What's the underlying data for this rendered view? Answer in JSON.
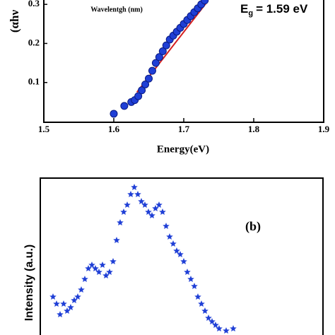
{
  "chart_data": [
    {
      "type": "scatter",
      "marker": "circle",
      "color": "#1f3fd6",
      "y_label": "(αhν",
      "x_label": "Energy(eV)",
      "annotation": "Wavelentgh (nm)",
      "eg_label": {
        "symbol": "E",
        "subscript": "g",
        "value": "= 1.59 eV"
      },
      "x": [
        1.6,
        1.615,
        1.625,
        1.63,
        1.635,
        1.64,
        1.645,
        1.65,
        1.655,
        1.66,
        1.665,
        1.67,
        1.675,
        1.68,
        1.685,
        1.69,
        1.695,
        1.7,
        1.705,
        1.71,
        1.715,
        1.72,
        1.725,
        1.73
      ],
      "values": [
        0.02,
        0.04,
        0.05,
        0.055,
        0.065,
        0.08,
        0.095,
        0.11,
        0.13,
        0.15,
        0.165,
        0.18,
        0.195,
        0.21,
        0.22,
        0.23,
        0.24,
        0.25,
        0.26,
        0.27,
        0.28,
        0.29,
        0.3,
        0.31
      ],
      "fit": {
        "color": "#d42020",
        "x": [
          1.633,
          1.735
        ],
        "values": [
          0.075,
          0.31
        ]
      },
      "xlim": [
        1.5,
        1.9
      ],
      "xticks": [
        1.5,
        1.6,
        1.7,
        1.8,
        1.9
      ],
      "ylim": [
        0,
        0.313
      ],
      "yticks": [
        0.1,
        0.2,
        0.3
      ]
    },
    {
      "type": "scatter",
      "marker": "star",
      "color": "#1f3fd6",
      "y_label": "Intensity (a.u.)",
      "annotation": "(b)",
      "x": [
        18,
        23,
        28,
        33,
        38,
        43,
        48,
        53,
        58,
        63,
        68,
        73,
        78,
        83,
        88,
        93,
        98,
        103,
        108,
        113,
        118,
        123,
        128,
        133,
        138,
        143,
        148,
        153,
        158,
        163,
        168,
        173,
        178,
        183,
        188,
        193,
        198,
        203,
        208,
        213,
        218,
        223,
        228,
        233,
        238,
        243,
        248,
        253,
        263,
        273
      ],
      "values": [
        60,
        50,
        35,
        50,
        40,
        45,
        55,
        60,
        70,
        85,
        100,
        105,
        100,
        95,
        105,
        90,
        95,
        110,
        140,
        165,
        180,
        190,
        205,
        215,
        205,
        195,
        190,
        180,
        175,
        185,
        190,
        180,
        160,
        145,
        135,
        125,
        120,
        110,
        95,
        85,
        75,
        60,
        50,
        40,
        30,
        25,
        20,
        15,
        12,
        15
      ],
      "xlim": [
        0,
        400
      ],
      "ylim": [
        0,
        228
      ]
    }
  ]
}
